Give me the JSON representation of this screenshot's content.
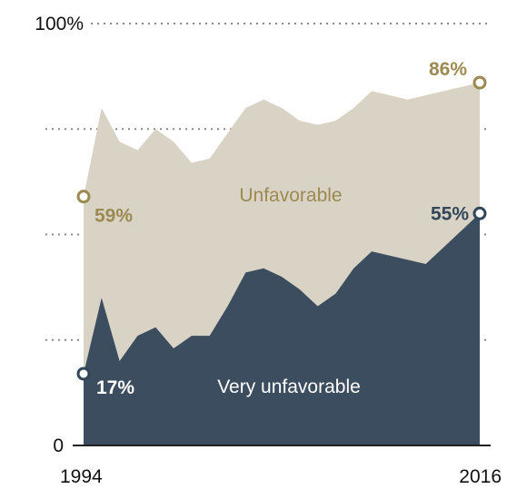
{
  "chart_data": {
    "type": "area",
    "title": "",
    "xlabel": "",
    "ylabel": "",
    "ylim": [
      0,
      100
    ],
    "xlim": [
      1994,
      2016
    ],
    "yticks": [
      0,
      25,
      50,
      75,
      100
    ],
    "ytick_labels": [
      "0",
      "",
      "",
      "",
      "100%"
    ],
    "xtick_labels": [
      "1994",
      "2016"
    ],
    "grid": true,
    "legend": "none",
    "colors": {
      "unfavorable": "#d8d3c5",
      "very_unfavorable": "#3b4d5e",
      "unfavorable_text": "#9c8a52",
      "very_unfavorable_text": "#33475a"
    },
    "series": [
      {
        "key": "unfavorable",
        "x": [
          1994,
          1995,
          1996,
          1997,
          1998,
          1999,
          2000,
          2001,
          2002,
          2003,
          2004,
          2005,
          2006,
          2007,
          2008,
          2009,
          2010,
          2011,
          2012,
          2013,
          2014,
          2015,
          2016
        ],
        "values": [
          59,
          80,
          72,
          70,
          75,
          72,
          67,
          68,
          74,
          80,
          82,
          80,
          77,
          76,
          77,
          80,
          84,
          83,
          82,
          83,
          84,
          85,
          86
        ]
      },
      {
        "key": "very_unfavorable",
        "x": [
          1994,
          1995,
          1996,
          1997,
          1998,
          1999,
          2000,
          2001,
          2002,
          2003,
          2004,
          2005,
          2006,
          2007,
          2008,
          2009,
          2010,
          2011,
          2012,
          2013,
          2014,
          2015,
          2016
        ],
        "values": [
          17,
          35,
          20,
          26,
          28,
          23,
          26,
          26,
          33,
          41,
          42,
          40,
          37,
          33,
          36,
          42,
          46,
          45,
          44,
          43,
          47,
          51,
          55
        ]
      }
    ],
    "annotations": {
      "unfavorable_label": "Unfavorable",
      "very_unfavorable_label": "Very unfavorable",
      "unfavorable_start": "59%",
      "unfavorable_end": "86%",
      "very_unfavorable_start": "17%",
      "very_unfavorable_end": "55%"
    }
  }
}
